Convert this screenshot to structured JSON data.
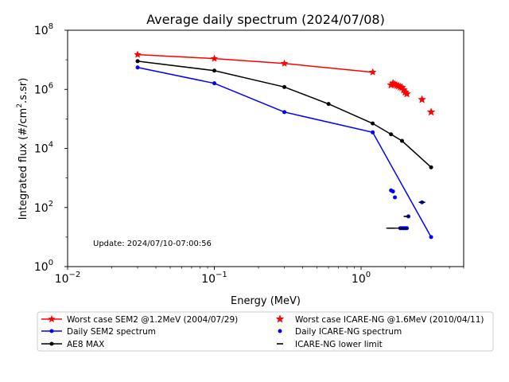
{
  "chart_data": {
    "type": "scatter",
    "title": "Average daily spectrum (2024/07/08)",
    "xlabel": "Energy (MeV)",
    "ylabel_main": "Integrated flux (#/cm",
    "ylabel_sup": "2",
    "ylabel_tail": ".s.sr)",
    "xscale": "log",
    "yscale": "log",
    "xlim": [
      0.01,
      5
    ],
    "ylim": [
      1,
      100000000
    ],
    "x_ticks": [
      {
        "value": 0.01,
        "base": "10",
        "exp": "−2"
      },
      {
        "value": 0.1,
        "base": "10",
        "exp": "−1"
      },
      {
        "value": 1,
        "base": "10",
        "exp": "0"
      }
    ],
    "y_ticks": [
      {
        "value": 1,
        "base": "10",
        "exp": "0"
      },
      {
        "value": 100,
        "base": "10",
        "exp": "2"
      },
      {
        "value": 10000,
        "base": "10",
        "exp": "4"
      },
      {
        "value": 1000000,
        "base": "10",
        "exp": "6"
      },
      {
        "value": 100000000,
        "base": "10",
        "exp": "8"
      }
    ],
    "annotation": "Update: 2024/07/10-07:00:56",
    "series": [
      {
        "name": "Worst case SEM2 @1.2MeV (2004/07/29)",
        "color": "#ff0000",
        "style": "line-star",
        "x": [
          0.03,
          0.1,
          0.3,
          1.2
        ],
        "y": [
          15000000,
          11000000,
          7500000,
          3800000
        ]
      },
      {
        "name": "Daily SEM2 spectrum",
        "color": "#0000ff",
        "style": "line-dot",
        "x": [
          0.03,
          0.1,
          0.3,
          1.2,
          3.0
        ],
        "y": [
          5500000,
          1600000,
          170000,
          35000,
          10
        ]
      },
      {
        "name": "AE8 MAX",
        "color": "#000000",
        "style": "line-dot",
        "x": [
          0.03,
          0.1,
          0.3,
          0.6,
          1.2,
          1.6,
          1.9,
          3.0
        ],
        "y": [
          9000000,
          4300000,
          1200000,
          320000,
          70000,
          30000,
          18000,
          2300
        ]
      },
      {
        "name": "Worst case ICARE-NG @1.6MeV (2010/04/11)",
        "color": "#ff0000",
        "style": "star",
        "x": [
          1.6,
          1.65,
          1.7,
          1.75,
          1.8,
          1.85,
          1.9,
          1.95,
          2.0,
          2.05,
          2.6,
          3.0
        ],
        "y": [
          1400000,
          1600000,
          1450000,
          1350000,
          1300000,
          1200000,
          1150000,
          950000,
          800000,
          700000,
          450000,
          170000
        ]
      },
      {
        "name": "Daily ICARE-NG spectrum",
        "color": "#0000ff",
        "style": "dot",
        "x": [
          1.6,
          1.65,
          1.7,
          1.85,
          1.9,
          1.95,
          2.0,
          2.05,
          2.1,
          2.6
        ],
        "y": [
          380,
          350,
          220,
          20,
          20,
          20,
          20,
          20,
          50,
          150
        ]
      },
      {
        "name": "ICARE-NG lower limit",
        "color": "#000000",
        "style": "dash",
        "x": [
          1.6,
          1.9,
          2.05,
          2.6
        ],
        "y": [
          20,
          20,
          50,
          150
        ]
      }
    ],
    "legend": "bottom, outside plot, two columns"
  }
}
